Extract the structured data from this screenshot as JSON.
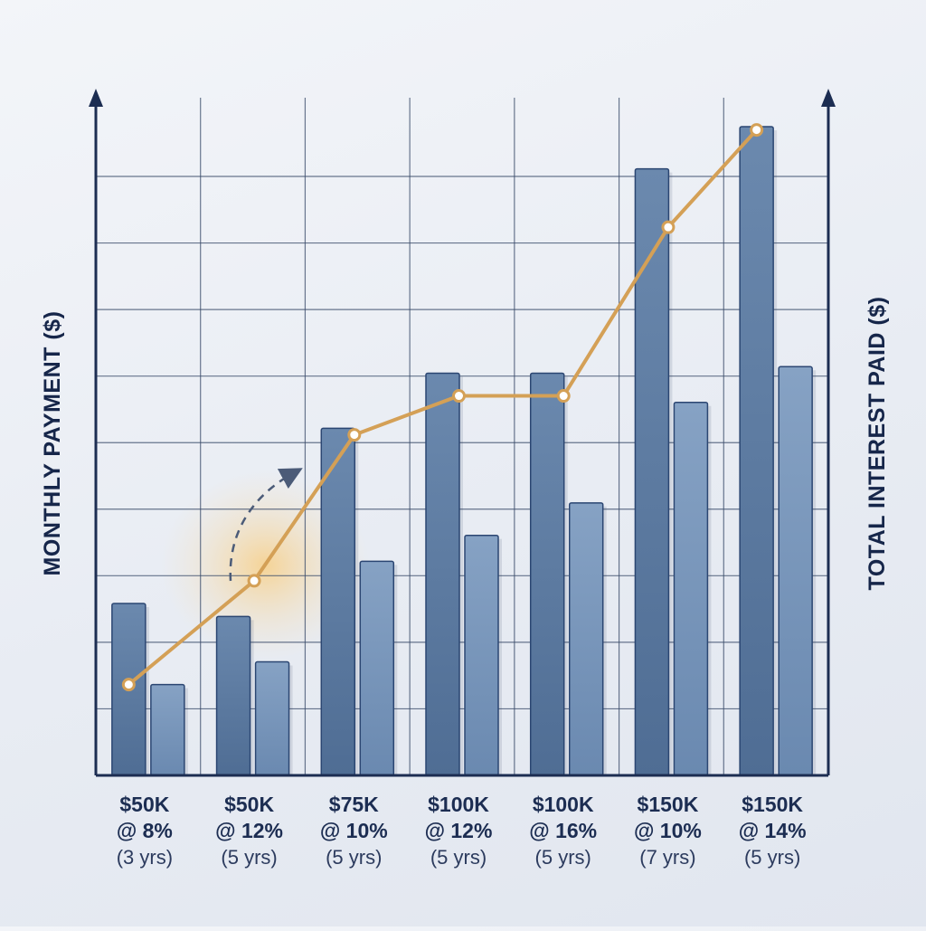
{
  "chart_data": {
    "type": "bar",
    "title": "",
    "xlabel": "",
    "ylabel": "MONTHLY PAYMENT ($)",
    "ylabel_right": "TOTAL INTEREST PAID ($)",
    "grid": true,
    "categories": [
      {
        "amount": "$50K",
        "rate": "@ 8%",
        "term": "(3 yrs)"
      },
      {
        "amount": "$50K",
        "rate": "@ 12%",
        "term": "(5 yrs)"
      },
      {
        "amount": "$75K",
        "rate": "@ 10%",
        "term": "(5 yrs)"
      },
      {
        "amount": "$100K",
        "rate": "@ 12%",
        "term": "(5 yrs)"
      },
      {
        "amount": "$100K",
        "rate": "@ 16%",
        "term": "(5 yrs)"
      },
      {
        "amount": "$150K",
        "rate": "@ 10%",
        "term": "(7 yrs)"
      },
      {
        "amount": "$150K",
        "rate": "@ 14%",
        "term": "(5 yrs)"
      }
    ],
    "ylim": [
      0,
      100
    ],
    "series": [
      {
        "type": "bar",
        "values": [
          26.5,
          24.5,
          53.5,
          62,
          62,
          93.5,
          100
        ]
      },
      {
        "type": "bar",
        "values": [
          14,
          17.5,
          33,
          37,
          42,
          57.5,
          63
        ]
      },
      {
        "type": "line",
        "values": [
          14,
          30,
          52.5,
          58.5,
          58.5,
          84.5,
          99.5
        ]
      }
    ],
    "colors": {
      "bar_dark": "#5b7aa1",
      "bar_light": "#7796bb",
      "bar_stroke": "#2b4672",
      "line": "#d4a056",
      "grid": "#3a4b6a",
      "axis": "#1c2d52",
      "highlight": "#f6c97a"
    },
    "annotation": {
      "type": "dashed-curved-arrow",
      "near_category": 1
    }
  }
}
